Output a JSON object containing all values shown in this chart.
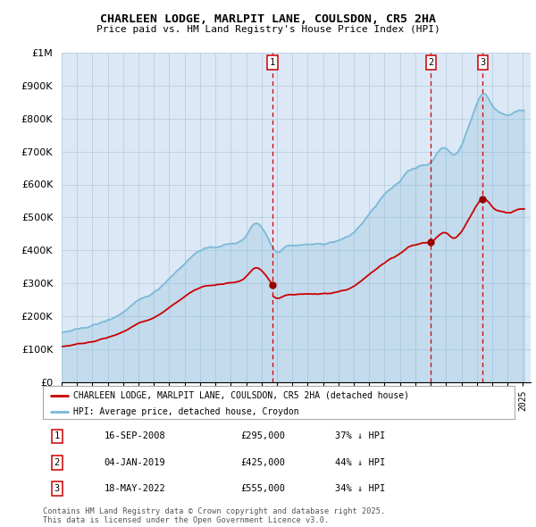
{
  "title": "CHARLEEN LODGE, MARLPIT LANE, COULSDON, CR5 2HA",
  "subtitle": "Price paid vs. HM Land Registry's House Price Index (HPI)",
  "legend_property": "CHARLEEN LODGE, MARLPIT LANE, COULSDON, CR5 2HA (detached house)",
  "legend_hpi": "HPI: Average price, detached house, Croydon",
  "footer": "Contains HM Land Registry data © Crown copyright and database right 2025.\nThis data is licensed under the Open Government Licence v3.0.",
  "transactions": [
    {
      "num": 1,
      "date": "16-SEP-2008",
      "price": 295000,
      "diff": "37% ↓ HPI",
      "x": 2008.71
    },
    {
      "num": 2,
      "date": "04-JAN-2019",
      "price": 425000,
      "diff": "44% ↓ HPI",
      "x": 2019.01
    },
    {
      "num": 3,
      "date": "18-MAY-2022",
      "price": 555000,
      "diff": "34% ↓ HPI",
      "x": 2022.38
    }
  ],
  "ylim": [
    0,
    1000000
  ],
  "yticks": [
    0,
    100000,
    200000,
    300000,
    400000,
    500000,
    600000,
    700000,
    800000,
    900000,
    1000000
  ],
  "ytick_labels": [
    "£0",
    "£100K",
    "£200K",
    "£300K",
    "£400K",
    "£500K",
    "£600K",
    "£700K",
    "£800K",
    "£900K",
    "£1M"
  ],
  "property_color": "#cc0000",
  "hpi_color": "#7ab8d8",
  "vline_color": "#cc0000",
  "bg_color": "#dce8f5",
  "grid_color": "#b8cfe0",
  "dot_color": "#990000"
}
